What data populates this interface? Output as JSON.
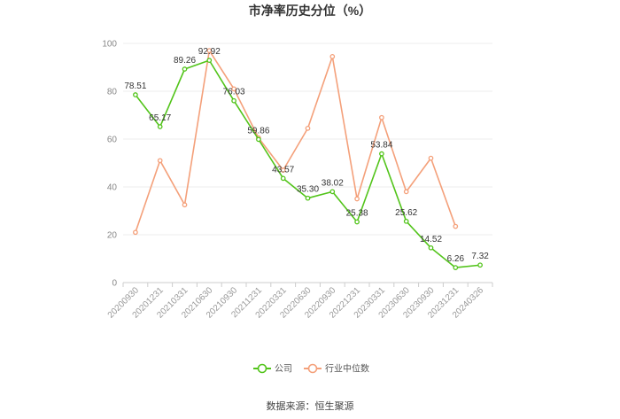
{
  "chart_data": {
    "type": "line",
    "title": "市净率历史分位（%）",
    "categories": [
      "20200930",
      "20201231",
      "20210331",
      "20210630",
      "20210930",
      "20211231",
      "20220331",
      "20220630",
      "20220930",
      "20221231",
      "20230331",
      "20230630",
      "20230930",
      "20231231",
      "20240326"
    ],
    "series": [
      {
        "name": "公司",
        "color": "#52c41a",
        "values": [
          78.51,
          65.17,
          89.26,
          92.92,
          76.03,
          59.86,
          43.57,
          35.3,
          38.02,
          25.38,
          53.84,
          25.62,
          14.52,
          6.26,
          7.32
        ],
        "labels": [
          "78.51",
          "65.17",
          "89.26",
          "92.92",
          "76.03",
          "59.86",
          "43.57",
          "35.30",
          "38.02",
          "25.38",
          "53.84",
          "25.62",
          "14.52",
          "6.26",
          "7.32"
        ]
      },
      {
        "name": "行业中位数",
        "color": "#f4a07a",
        "values": [
          21,
          51,
          32.5,
          97,
          81,
          60.5,
          47,
          64.5,
          94.5,
          35,
          69,
          38,
          52,
          23.5,
          null
        ]
      }
    ],
    "ylim": [
      0,
      100
    ],
    "yticks": [
      "0",
      "20",
      "40",
      "60",
      "80",
      "100"
    ],
    "grid": true,
    "legend_position": "bottom"
  },
  "source": "数据来源：恒生聚源"
}
